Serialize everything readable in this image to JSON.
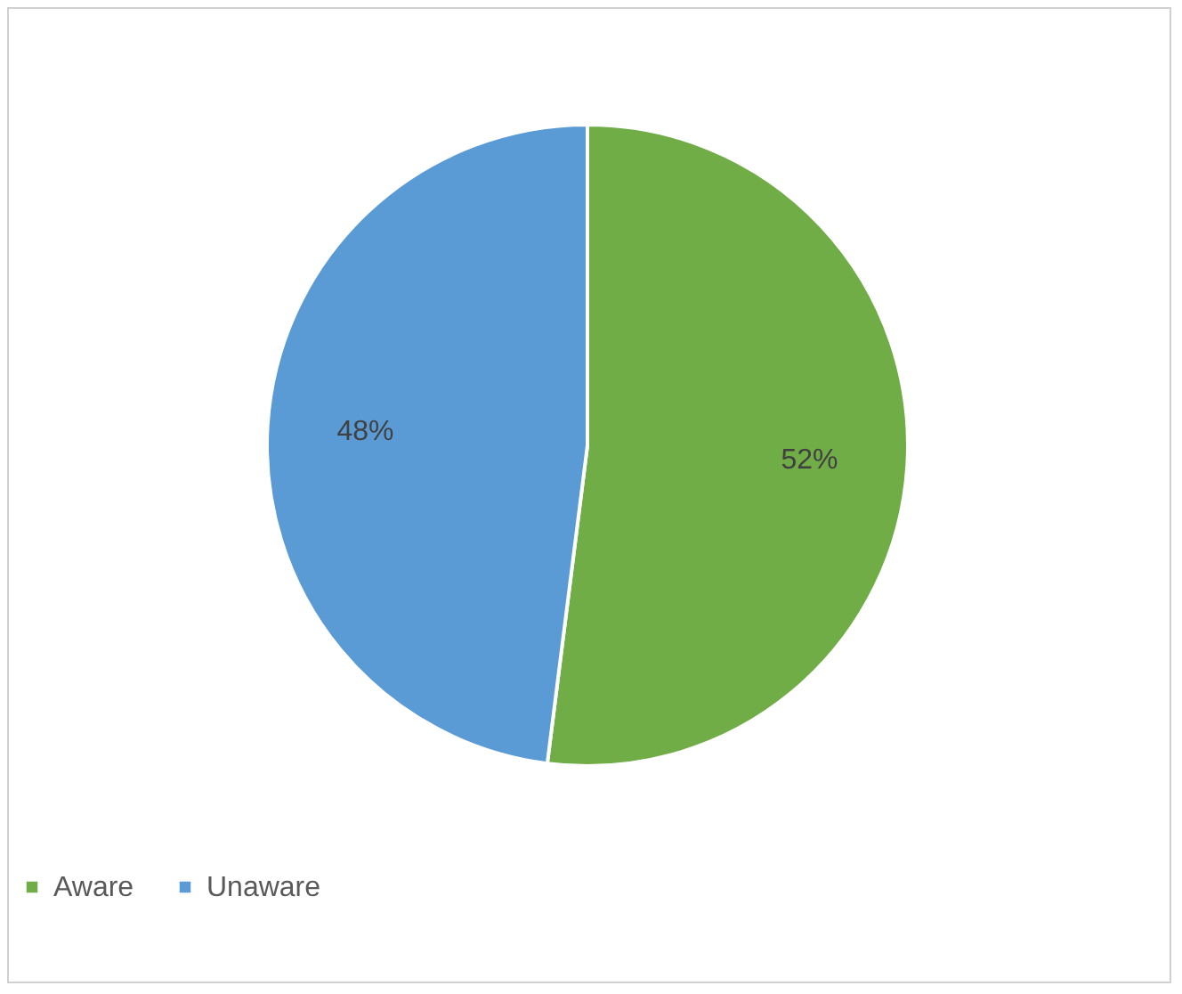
{
  "chart_data": {
    "type": "pie",
    "categories": [
      "Aware",
      "Unaware"
    ],
    "values": [
      52,
      48
    ],
    "colors": [
      "#70ad47",
      "#5b9bd5"
    ],
    "value_labels": [
      "52%",
      "48%"
    ],
    "legend": "bottom"
  }
}
